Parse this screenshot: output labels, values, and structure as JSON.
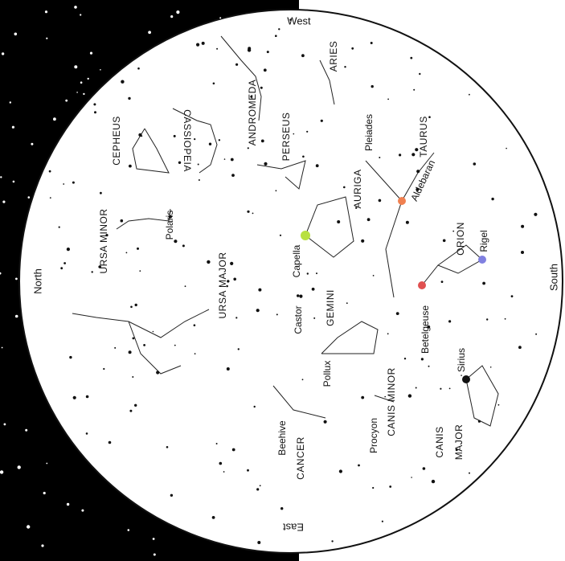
{
  "directions": {
    "north": "North",
    "south": "South",
    "east": "East",
    "west": "West"
  },
  "constellations": [
    "ARIES",
    "ANDROMEDA",
    "CASSIOPEIA",
    "CEPHEUS",
    "PERSEUS",
    "TAURUS",
    "AURIGA",
    "URSA MINOR",
    "URSA MAJOR",
    "ORION",
    "GEMINI",
    "CANIS MINOR",
    "CANCER",
    "CANIS",
    "MAJOR"
  ],
  "stars": [
    "Pleiades",
    "Aldebaran",
    "Polaris",
    "Capella",
    "Rigel",
    "Castor",
    "Betelgeuse",
    "Pollux",
    "Sirius",
    "Procyon",
    "Beehive"
  ]
}
